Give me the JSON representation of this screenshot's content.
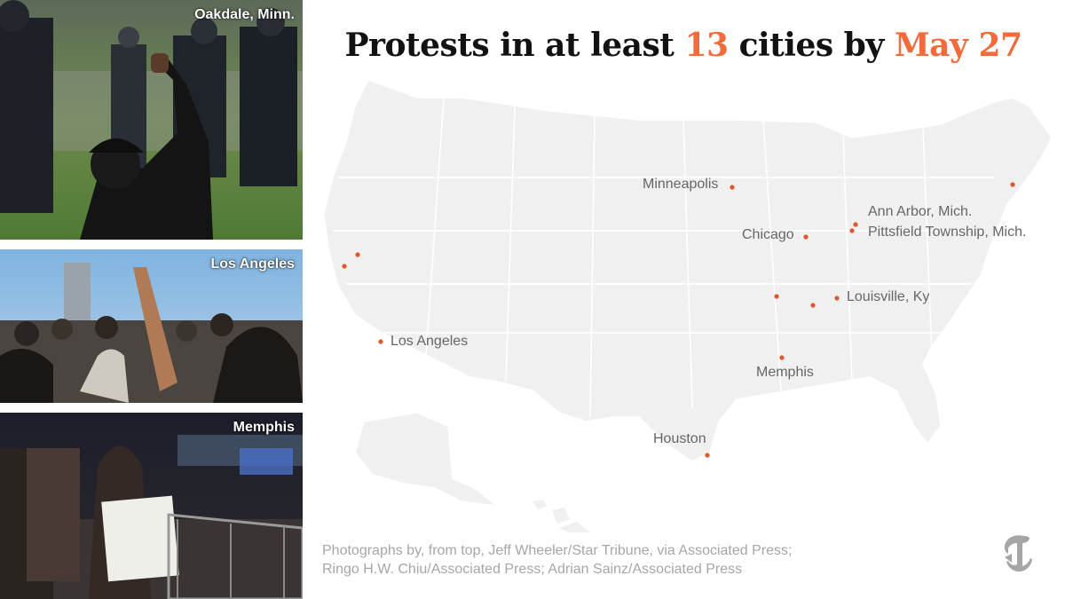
{
  "headline": {
    "part1": "Protests in at least ",
    "count": "13",
    "part2": " cities by ",
    "date": "May 27"
  },
  "colors": {
    "accent": "#f26b3a",
    "dot": "#e0572b",
    "land": "#f0f0f0",
    "borders": "#ffffff",
    "label": "#666666",
    "credit": "#a6a6a6"
  },
  "photos": [
    {
      "caption": "Oakdale, Minn."
    },
    {
      "caption": "Los Angeles"
    },
    {
      "caption": "Memphis"
    }
  ],
  "map": {
    "labels": [
      "Minneapolis",
      "Chicago",
      "Ann Arbor, Mich.",
      "Pittsfield Township, Mich.",
      "Louisville, Ky",
      "Los Angeles",
      "Memphis",
      "Houston"
    ],
    "marker_count": 13
  },
  "credits": {
    "line1": "Photographs by, from top, Jeff Wheeler/Star Tribune, via Associated Press;",
    "line2": "Ringo H.W. Chiu/Associated Press; Adrian Sainz/Associated Press"
  },
  "logo": {
    "icon": "nyt-t-logo-icon"
  }
}
